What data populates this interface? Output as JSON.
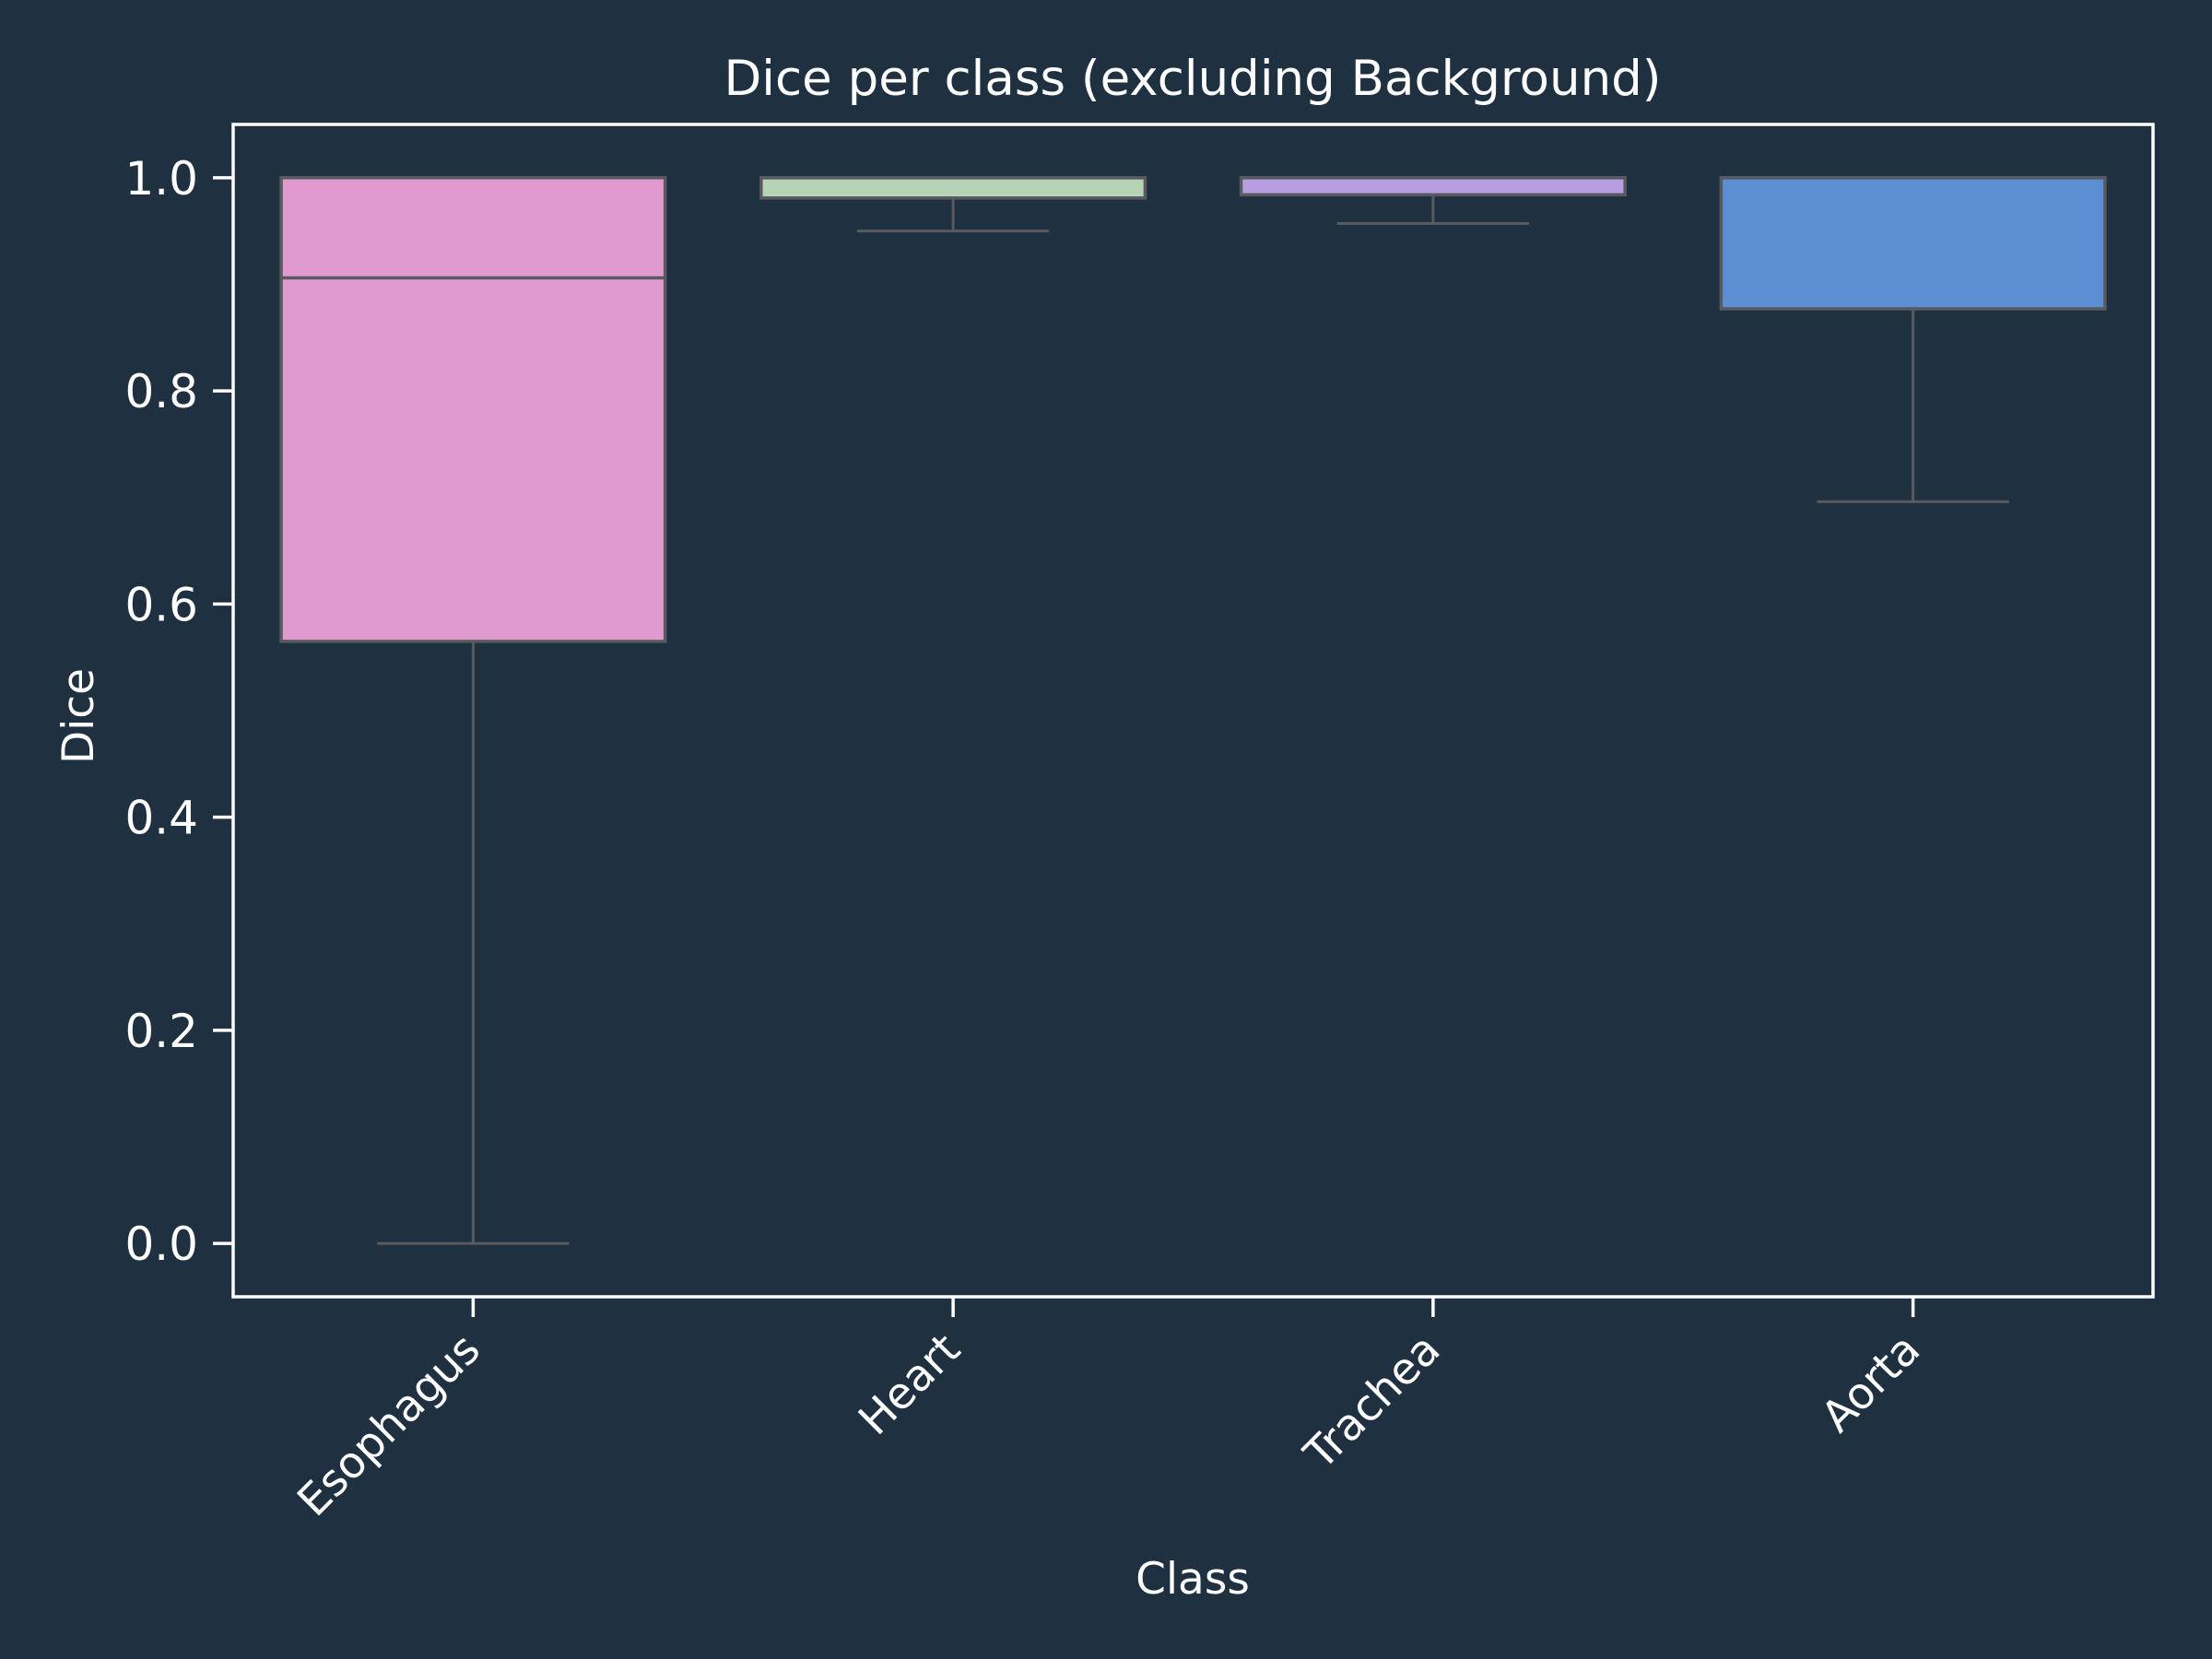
{
  "chart_data": {
    "type": "box",
    "title": "Dice per class (excluding Background)",
    "xlabel": "Class",
    "ylabel": "Dice",
    "ylim": [
      -0.05,
      1.05
    ],
    "yticks": [
      0.0,
      0.2,
      0.4,
      0.6,
      0.8,
      1.0
    ],
    "ytick_labels": [
      "0.0",
      "0.2",
      "0.4",
      "0.6",
      "0.8",
      "1.0"
    ],
    "grid": false,
    "categories": [
      "Esophagus",
      "Heart",
      "Trachea",
      "Aorta"
    ],
    "boxes": [
      {
        "category": "Esophagus",
        "whisker_low": 0.0,
        "q1": 0.565,
        "median": 0.906,
        "q3": 1.0,
        "whisker_high": 1.0,
        "color": "#e09acf"
      },
      {
        "category": "Heart",
        "whisker_low": 0.95,
        "q1": 0.981,
        "median": 1.0,
        "q3": 1.0,
        "whisker_high": 1.0,
        "color": "#b7d3b5"
      },
      {
        "category": "Trachea",
        "whisker_low": 0.957,
        "q1": 0.984,
        "median": 1.0,
        "q3": 1.0,
        "whisker_high": 1.0,
        "color": "#b89de0"
      },
      {
        "category": "Aorta",
        "whisker_low": 0.696,
        "q1": 0.877,
        "median": 1.0,
        "q3": 1.0,
        "whisker_high": 1.0,
        "color": "#5b8ed3"
      }
    ],
    "colors": {
      "background": "#1f3140",
      "axes": "#ffffff",
      "box_edge": "#585a60",
      "text": "#ffffff"
    }
  }
}
